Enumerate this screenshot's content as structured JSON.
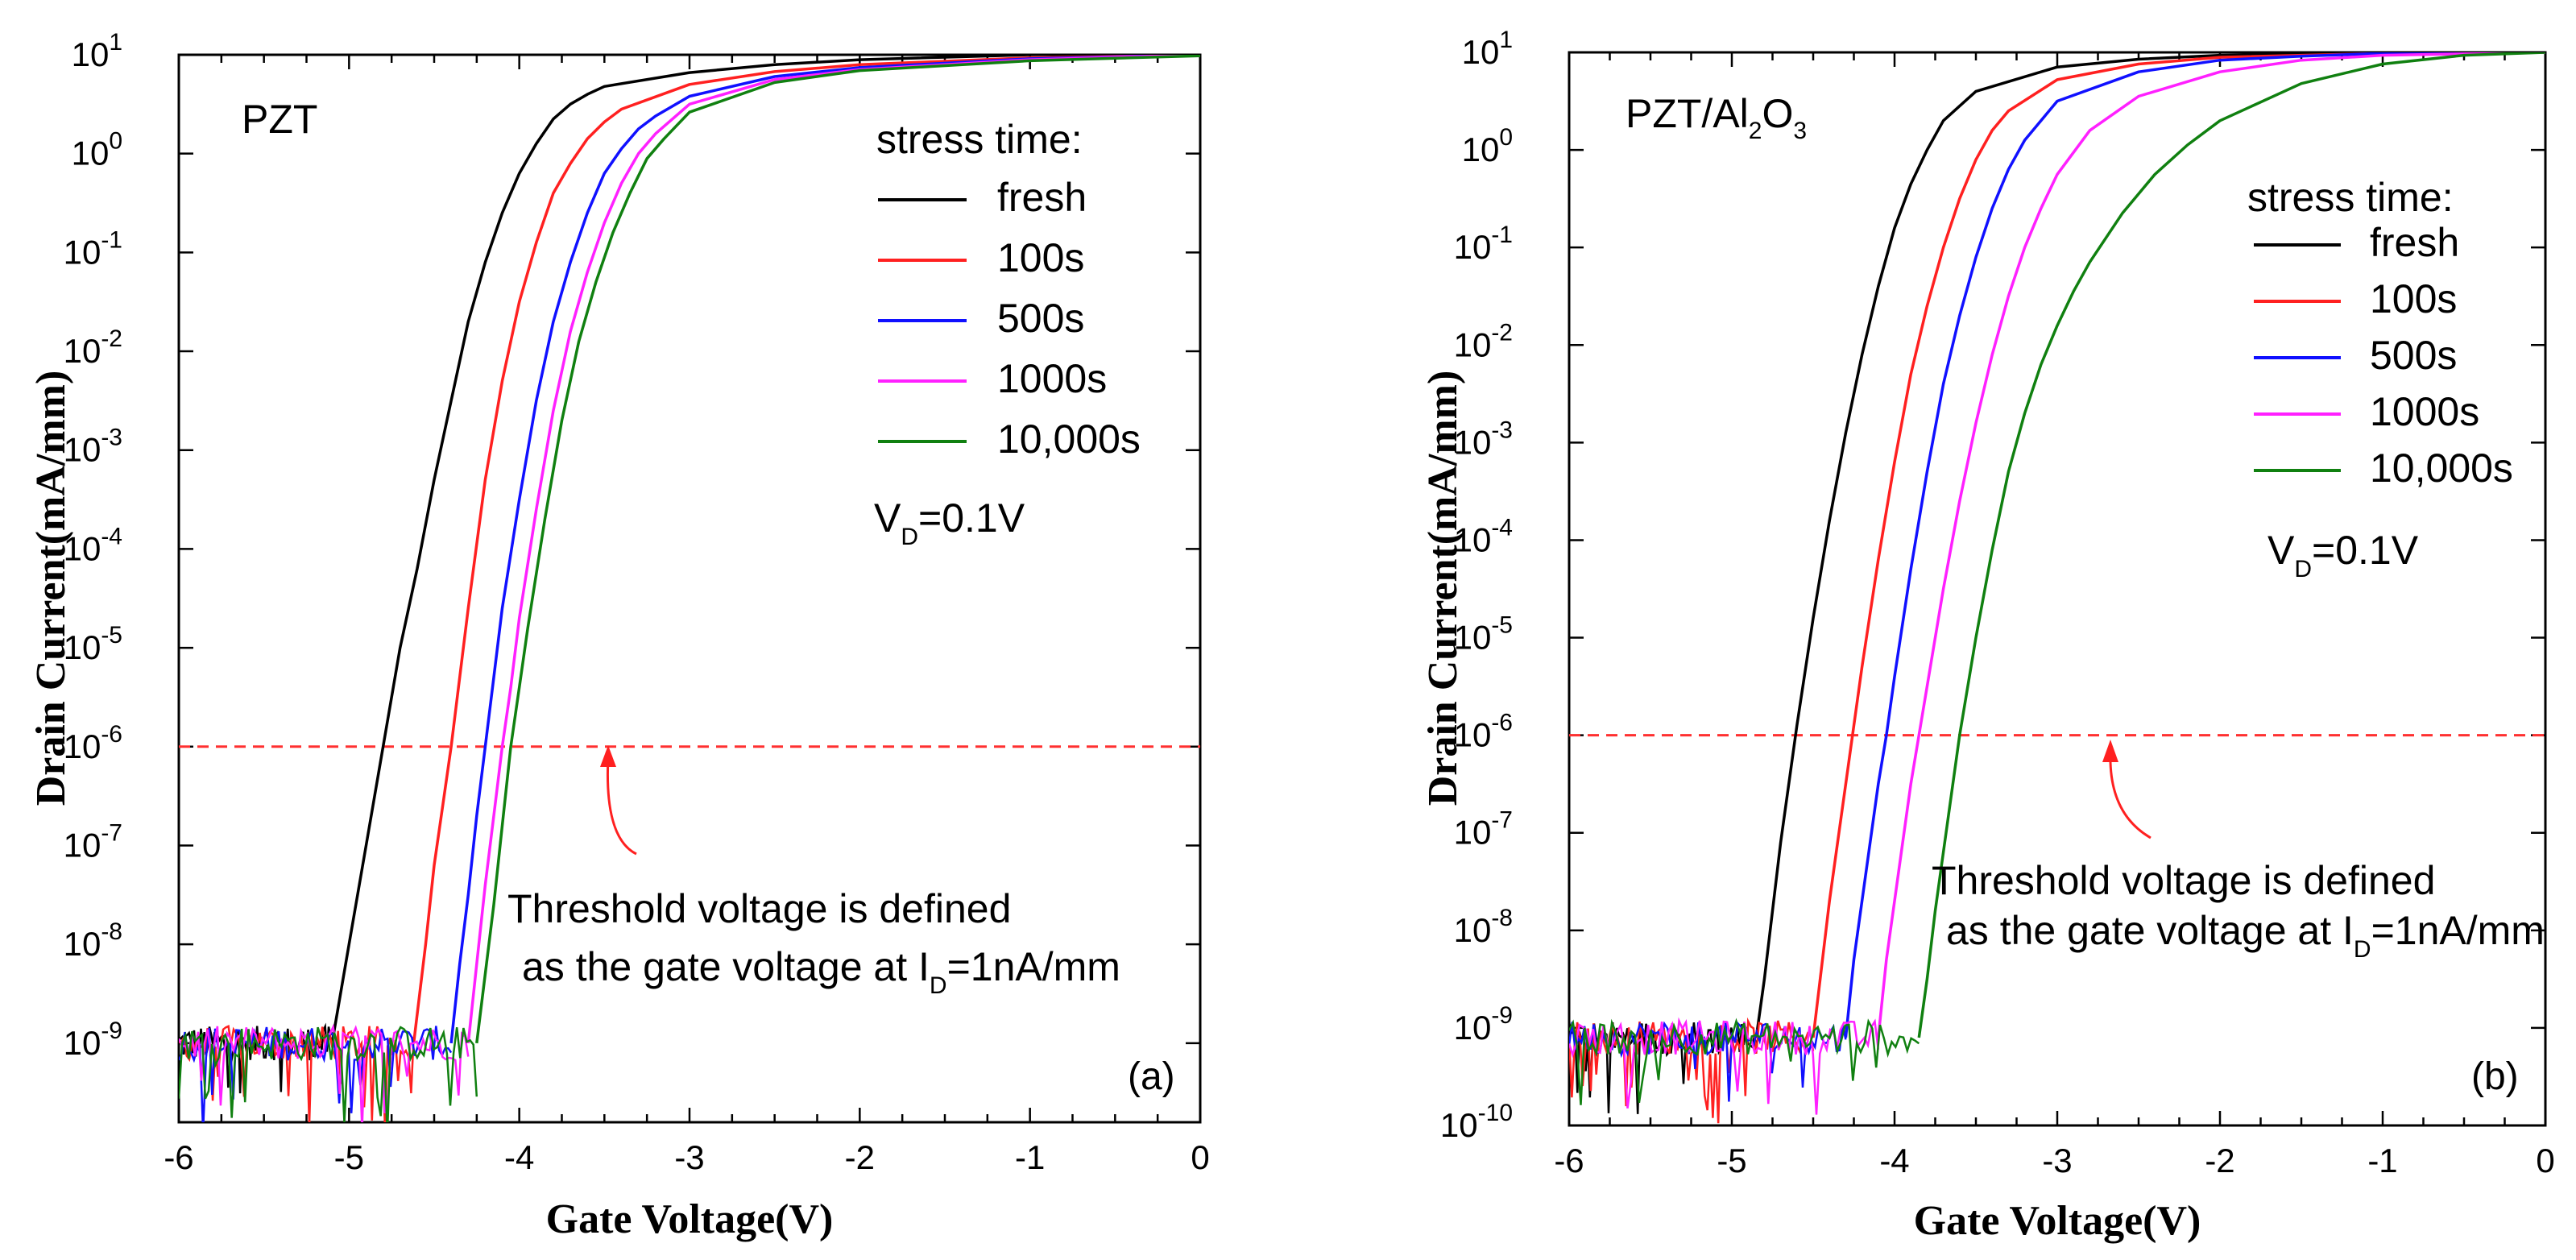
{
  "chart_data": [
    {
      "type": "line",
      "panel_label": "(a)",
      "material": {
        "main": "PZT",
        "sub1": "",
        "mid": "",
        "sub2": ""
      },
      "xlabel": "Gate Voltage(V)",
      "ylabel": "Drain Current(mA/mm)",
      "xlim": [
        -6,
        0
      ],
      "ylim_exp": [
        -9.8,
        1
      ],
      "x_ticks": [
        "-6",
        "-5",
        "-4",
        "-3",
        "-2",
        "-1",
        "0"
      ],
      "y_tick_exponents": [
        "1",
        "0",
        "-1",
        "-2",
        "-3",
        "-4",
        "-5",
        "-6",
        "-7",
        "-8",
        "-9"
      ],
      "legend_title": "stress time:",
      "condition": {
        "prefix": "V",
        "sub": "D",
        "suffix": "=0.1V"
      },
      "annotation": {
        "line1": "Threshold voltage is defined",
        "line2_prefix": "as the gate voltage at I",
        "line2_sub": "D",
        "line2_suffix": "=1nA/mm"
      },
      "reference_line": {
        "y_exp": -6,
        "color": "#ff3030"
      },
      "series": [
        {
          "name": "fresh",
          "color": "#000000",
          "x": [
            -6,
            -5.1,
            -5.0,
            -4.9,
            -4.8,
            -4.7,
            -4.6,
            -4.5,
            -4.4,
            -4.3,
            -4.2,
            -4.1,
            -4.0,
            -3.9,
            -3.8,
            -3.7,
            -3.6,
            -3.5,
            -3.0,
            -2.5,
            -2.0,
            -1.0,
            0
          ],
          "y_exp": [
            -9.0,
            -9.0,
            -8.0,
            -7.0,
            -6.0,
            -5.0,
            -4.2,
            -3.3,
            -2.5,
            -1.7,
            -1.1,
            -0.6,
            -0.2,
            0.1,
            0.35,
            0.5,
            0.6,
            0.68,
            0.82,
            0.9,
            0.95,
            1.0,
            1.02
          ]
        },
        {
          "name": "100s",
          "color": "#ff2020",
          "x": [
            -6,
            -4.62,
            -4.55,
            -4.5,
            -4.45,
            -4.4,
            -4.35,
            -4.3,
            -4.2,
            -4.1,
            -4.0,
            -3.9,
            -3.8,
            -3.7,
            -3.6,
            -3.5,
            -3.4,
            -3.0,
            -2.5,
            -2.0,
            -1.0,
            0
          ],
          "y_exp": [
            -9.0,
            -9.0,
            -8.0,
            -7.2,
            -6.6,
            -6.0,
            -5.3,
            -4.6,
            -3.3,
            -2.3,
            -1.5,
            -0.9,
            -0.4,
            -0.1,
            0.15,
            0.32,
            0.45,
            0.7,
            0.83,
            0.9,
            0.97,
            1.0
          ]
        },
        {
          "name": "500s",
          "color": "#1010ff",
          "x": [
            -6,
            -4.4,
            -4.35,
            -4.3,
            -4.25,
            -4.2,
            -4.15,
            -4.1,
            -4.0,
            -3.9,
            -3.8,
            -3.7,
            -3.6,
            -3.5,
            -3.4,
            -3.3,
            -3.2,
            -3.0,
            -2.5,
            -2.0,
            -1.0,
            0
          ],
          "y_exp": [
            -9.0,
            -9.0,
            -8.2,
            -7.5,
            -6.7,
            -6.0,
            -5.3,
            -4.6,
            -3.5,
            -2.5,
            -1.7,
            -1.1,
            -0.6,
            -0.2,
            0.05,
            0.25,
            0.38,
            0.58,
            0.78,
            0.87,
            0.96,
            1.0
          ]
        },
        {
          "name": "1000s",
          "color": "#ff20ff",
          "x": [
            -6,
            -4.3,
            -4.25,
            -4.2,
            -4.15,
            -4.1,
            -4.05,
            -4.0,
            -3.9,
            -3.8,
            -3.7,
            -3.6,
            -3.5,
            -3.4,
            -3.3,
            -3.2,
            -3.0,
            -2.5,
            -2.0,
            -1.0,
            0
          ],
          "y_exp": [
            -9.0,
            -9.0,
            -8.2,
            -7.4,
            -6.7,
            -6.0,
            -5.4,
            -4.7,
            -3.6,
            -2.6,
            -1.8,
            -1.2,
            -0.7,
            -0.3,
            0.0,
            0.2,
            0.5,
            0.75,
            0.85,
            0.95,
            1.0
          ]
        },
        {
          "name": "10,000s",
          "color": "#108010",
          "x": [
            -6,
            -4.25,
            -4.2,
            -4.15,
            -4.1,
            -4.05,
            -4.0,
            -3.95,
            -3.85,
            -3.75,
            -3.65,
            -3.55,
            -3.45,
            -3.35,
            -3.25,
            -3.15,
            -3.0,
            -2.5,
            -2.0,
            -1.0,
            0
          ],
          "y_exp": [
            -9.0,
            -9.0,
            -8.3,
            -7.6,
            -6.8,
            -6.0,
            -5.4,
            -4.8,
            -3.7,
            -2.7,
            -1.9,
            -1.3,
            -0.8,
            -0.4,
            -0.05,
            0.15,
            0.42,
            0.72,
            0.84,
            0.94,
            0.99
          ]
        }
      ]
    },
    {
      "type": "line",
      "panel_label": "(b)",
      "material": {
        "main": "PZT/Al",
        "sub1": "2",
        "mid": "O",
        "sub2": "3"
      },
      "xlabel": "Gate Voltage(V)",
      "ylabel": "Drain Current(mA/mm)",
      "xlim": [
        -6,
        0
      ],
      "ylim_exp": [
        -10,
        1
      ],
      "x_ticks": [
        "-6",
        "-5",
        "-4",
        "-3",
        "-2",
        "-1",
        "0"
      ],
      "y_tick_exponents": [
        "1",
        "0",
        "-1",
        "-2",
        "-3",
        "-4",
        "-5",
        "-6",
        "-7",
        "-8",
        "-9",
        "-10"
      ],
      "legend_title": "stress time:",
      "condition": {
        "prefix": "V",
        "sub": "D",
        "suffix": "=0.1V"
      },
      "annotation": {
        "line1": "Threshold voltage is defined",
        "line2_prefix": "as the gate voltage at I",
        "line2_sub": "D",
        "line2_suffix": "=1nA/mm"
      },
      "reference_line": {
        "y_exp": -6,
        "color": "#ff3030"
      },
      "series": [
        {
          "name": "fresh",
          "color": "#000000",
          "x": [
            -6,
            -4.85,
            -4.8,
            -4.75,
            -4.7,
            -4.65,
            -4.6,
            -4.5,
            -4.4,
            -4.3,
            -4.2,
            -4.1,
            -4.0,
            -3.9,
            -3.8,
            -3.7,
            -3.5,
            -3.0,
            -2.5,
            -2.0,
            -1.0,
            0
          ],
          "y_exp": [
            -9.1,
            -9.1,
            -8.5,
            -7.8,
            -7.1,
            -6.5,
            -5.9,
            -4.8,
            -3.8,
            -2.9,
            -2.1,
            -1.4,
            -0.8,
            -0.35,
            0.0,
            0.3,
            0.6,
            0.85,
            0.93,
            0.97,
            0.99,
            1.0
          ]
        },
        {
          "name": "100s",
          "color": "#ff2020",
          "x": [
            -6,
            -4.5,
            -4.45,
            -4.4,
            -4.35,
            -4.3,
            -4.25,
            -4.2,
            -4.1,
            -4.0,
            -3.9,
            -3.8,
            -3.7,
            -3.6,
            -3.5,
            -3.4,
            -3.3,
            -3.0,
            -2.5,
            -2.0,
            -1.0,
            0
          ],
          "y_exp": [
            -9.1,
            -9.1,
            -8.4,
            -7.7,
            -7.1,
            -6.5,
            -5.9,
            -5.3,
            -4.2,
            -3.2,
            -2.3,
            -1.6,
            -1.0,
            -0.5,
            -0.1,
            0.2,
            0.4,
            0.72,
            0.88,
            0.95,
            0.99,
            1.0
          ]
        },
        {
          "name": "500s",
          "color": "#1010ff",
          "x": [
            -6,
            -4.3,
            -4.25,
            -4.2,
            -4.15,
            -4.1,
            -4.05,
            -4.0,
            -3.9,
            -3.8,
            -3.7,
            -3.6,
            -3.5,
            -3.4,
            -3.3,
            -3.2,
            -3.0,
            -2.5,
            -2.0,
            -1.5,
            -1.0,
            0
          ],
          "y_exp": [
            -9.1,
            -9.1,
            -8.3,
            -7.7,
            -7.1,
            -6.5,
            -6.0,
            -5.4,
            -4.3,
            -3.3,
            -2.4,
            -1.7,
            -1.1,
            -0.6,
            -0.2,
            0.1,
            0.5,
            0.8,
            0.92,
            0.96,
            0.99,
            1.0
          ]
        },
        {
          "name": "1000s",
          "color": "#ff20ff",
          "x": [
            -6,
            -4.1,
            -4.05,
            -4.0,
            -3.95,
            -3.9,
            -3.85,
            -3.8,
            -3.7,
            -3.6,
            -3.5,
            -3.4,
            -3.3,
            -3.2,
            -3.1,
            -3.0,
            -2.8,
            -2.5,
            -2.0,
            -1.5,
            -1.0,
            0
          ],
          "y_exp": [
            -9.1,
            -9.1,
            -8.3,
            -7.7,
            -7.1,
            -6.5,
            -6.0,
            -5.5,
            -4.5,
            -3.6,
            -2.8,
            -2.1,
            -1.5,
            -1.0,
            -0.6,
            -0.25,
            0.2,
            0.55,
            0.8,
            0.92,
            0.97,
            1.0
          ]
        },
        {
          "name": "10,000s",
          "color": "#108010",
          "x": [
            -6,
            -3.85,
            -3.8,
            -3.75,
            -3.7,
            -3.65,
            -3.6,
            -3.5,
            -3.4,
            -3.3,
            -3.2,
            -3.1,
            -3.0,
            -2.9,
            -2.8,
            -2.6,
            -2.4,
            -2.2,
            -2.0,
            -1.5,
            -1.0,
            -0.5,
            0
          ],
          "y_exp": [
            -9.1,
            -9.1,
            -8.5,
            -7.8,
            -7.2,
            -6.6,
            -6.0,
            -5.0,
            -4.1,
            -3.3,
            -2.7,
            -2.2,
            -1.8,
            -1.45,
            -1.15,
            -0.65,
            -0.25,
            0.05,
            0.3,
            0.68,
            0.88,
            0.97,
            1.0
          ]
        }
      ]
    }
  ]
}
